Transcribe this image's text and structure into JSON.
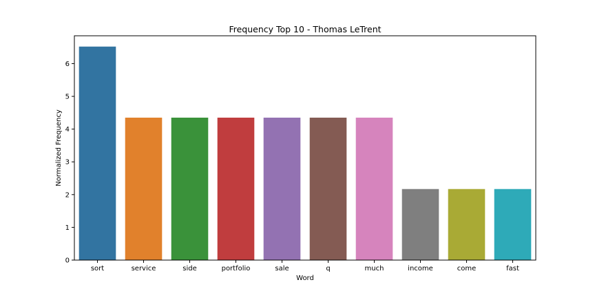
{
  "chart_data": {
    "type": "bar",
    "title": "Frequency Top 10 - Thomas LeTrent",
    "xlabel": "Word",
    "ylabel": "Normalized Frequency",
    "categories": [
      "sort",
      "service",
      "side",
      "portfolio",
      "sale",
      "q",
      "much",
      "income",
      "come",
      "fast"
    ],
    "values": [
      6.52,
      4.35,
      4.35,
      4.35,
      4.35,
      4.35,
      4.35,
      2.17,
      2.17,
      2.17
    ],
    "colors": [
      "#3274a1",
      "#e1812c",
      "#3a923a",
      "#c03d3e",
      "#9372b2",
      "#845b53",
      "#d684bd",
      "#7f7f7f",
      "#a9aa35",
      "#2eaab8"
    ],
    "yticks": [
      0,
      1,
      2,
      3,
      4,
      5,
      6
    ],
    "ylim": [
      0,
      6.85
    ],
    "grid": false,
    "legend": "none"
  }
}
